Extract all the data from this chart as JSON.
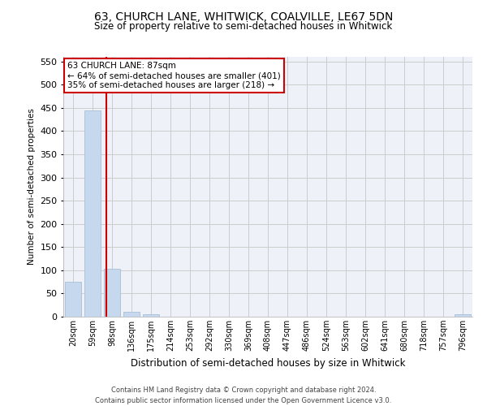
{
  "title": "63, CHURCH LANE, WHITWICK, COALVILLE, LE67 5DN",
  "subtitle": "Size of property relative to semi-detached houses in Whitwick",
  "xlabel": "Distribution of semi-detached houses by size in Whitwick",
  "ylabel": "Number of semi-detached properties",
  "annotation_line1": "63 CHURCH LANE: 87sqm",
  "annotation_line2": "← 64% of semi-detached houses are smaller (401)",
  "annotation_line3": "35% of semi-detached houses are larger (218) →",
  "footer_line1": "Contains HM Land Registry data © Crown copyright and database right 2024.",
  "footer_line2": "Contains public sector information licensed under the Open Government Licence v3.0.",
  "bin_labels": [
    "20sqm",
    "59sqm",
    "98sqm",
    "136sqm",
    "175sqm",
    "214sqm",
    "253sqm",
    "292sqm",
    "330sqm",
    "369sqm",
    "408sqm",
    "447sqm",
    "486sqm",
    "524sqm",
    "563sqm",
    "602sqm",
    "641sqm",
    "680sqm",
    "718sqm",
    "757sqm",
    "796sqm"
  ],
  "bar_values": [
    75,
    445,
    103,
    10,
    5,
    0,
    0,
    0,
    0,
    0,
    0,
    0,
    0,
    0,
    0,
    0,
    0,
    0,
    0,
    0,
    5
  ],
  "bar_color": "#c5d8ed",
  "bar_edge_color": "#a0b8d0",
  "property_line_color": "#cc0000",
  "annotation_box_color": "#ffffff",
  "annotation_box_edge": "#cc0000",
  "ylim": [
    0,
    560
  ],
  "yticks": [
    0,
    50,
    100,
    150,
    200,
    250,
    300,
    350,
    400,
    450,
    500,
    550
  ],
  "grid_color": "#cccccc",
  "bg_color": "#eef2f8"
}
